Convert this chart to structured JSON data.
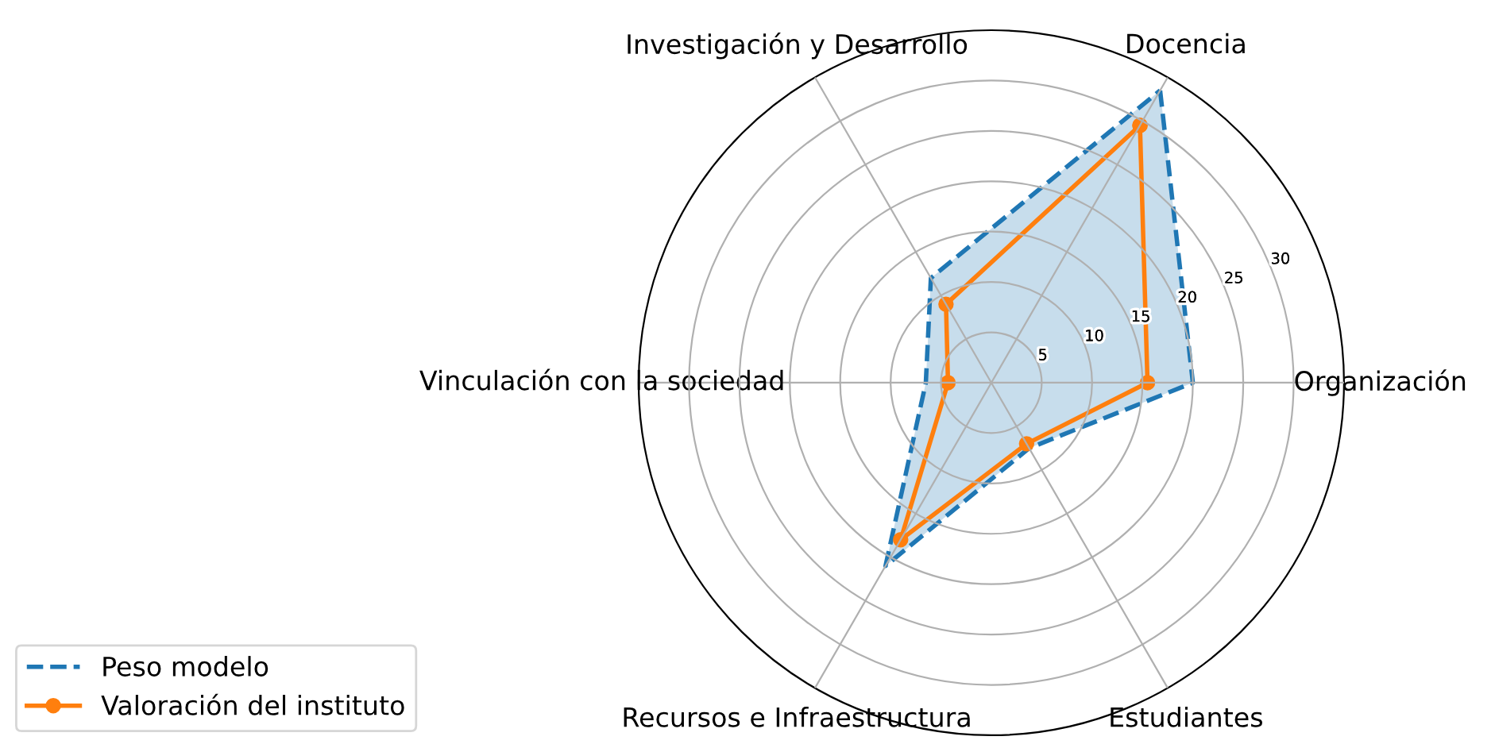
{
  "chart_data": {
    "type": "radar",
    "categories": [
      "Docencia",
      "Organización",
      "Estudiantes",
      "Recursos e Infraestructura",
      "Vinculación con la sociedad",
      "Investigación y Desarrollo"
    ],
    "series": [
      {
        "name": "Peso modelo",
        "color": "#1f77b4",
        "values": [
          33.5,
          20,
          7.5,
          21,
          6.5,
          12
        ],
        "line_style": "dashed",
        "marker": "none",
        "type": "area"
      },
      {
        "name": "Valoración del instituto",
        "color": "#ff7f0e",
        "values": [
          29.5,
          15.5,
          7,
          18,
          4.3,
          9
        ],
        "line_style": "solid",
        "marker": "circle"
      }
    ],
    "ylim": [
      0,
      35
    ],
    "yticks": [
      5,
      10,
      15,
      20,
      25,
      30
    ],
    "grid": true,
    "legend": "bottom left"
  }
}
